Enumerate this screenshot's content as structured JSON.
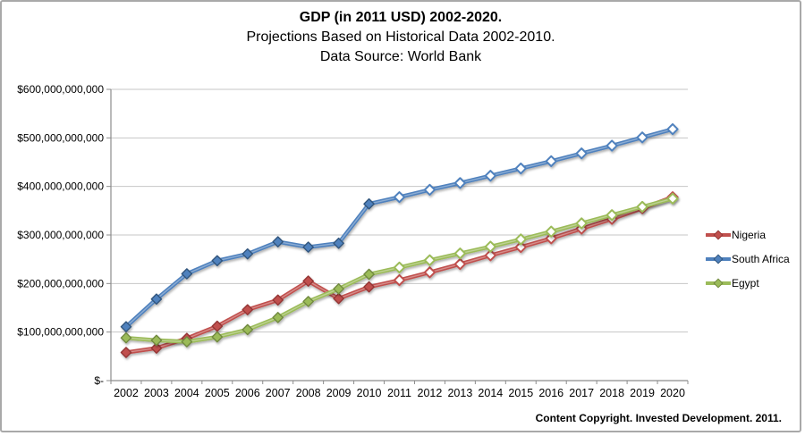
{
  "header": {
    "title": "GDP (in 2011 USD) 2002-2020.",
    "subtitle": "Projections Based on Historical Data 2002-2010.",
    "source": "Data Source: World Bank"
  },
  "footer": {
    "copyright": "Content Copyright. Invested Development. 2011."
  },
  "colors": {
    "grid": "#c6c6c6",
    "axis": "#8c8c8c",
    "text": "#000000",
    "frame_border": "#a9a9a9"
  },
  "chart_data": {
    "type": "line",
    "title": "GDP (in 2011 USD) 2002-2020.",
    "subtitle": "Projections Based on Historical Data 2002-2010.",
    "source_note": "Data Source: World Bank",
    "unit": "USD, values listed in billions as read from chart",
    "categories": [
      "2002",
      "2003",
      "2004",
      "2005",
      "2006",
      "2007",
      "2008",
      "2009",
      "2010",
      "2011",
      "2012",
      "2013",
      "2014",
      "2015",
      "2016",
      "2017",
      "2018",
      "2019",
      "2020"
    ],
    "y_axis": {
      "min": 0,
      "max": 600,
      "tick_step": 100,
      "tick_labels_bottom_to_top": [
        "$-",
        "$100,000,000,000",
        "$200,000,000,000",
        "$300,000,000,000",
        "$400,000,000,000",
        "$500,000,000,000",
        "$600,000,000,000"
      ]
    },
    "grid": true,
    "legend_position": "right",
    "historical_through": "2010",
    "marker_note": "markers solid for 2002-2010 historical data, hollow (white-filled) for 2011-2020 projections",
    "series": [
      {
        "name": "Nigeria",
        "color": "#c0504d",
        "edge_color": "#943634",
        "values": [
          58,
          67,
          87,
          112,
          146,
          166,
          205,
          169,
          193,
          207,
          223,
          240,
          258,
          275,
          293,
          313,
          333,
          355,
          378
        ]
      },
      {
        "name": "South Africa",
        "color": "#4f81bd",
        "edge_color": "#30557d",
        "values": [
          111,
          168,
          220,
          247,
          261,
          286,
          275,
          283,
          364,
          378,
          393,
          407,
          422,
          437,
          452,
          468,
          484,
          501,
          518
        ]
      },
      {
        "name": "Egypt",
        "color": "#9bbb59",
        "edge_color": "#71893f",
        "values": [
          88,
          83,
          80,
          90,
          105,
          130,
          163,
          189,
          219,
          233,
          248,
          262,
          276,
          291,
          307,
          324,
          341,
          358,
          375
        ]
      }
    ]
  }
}
